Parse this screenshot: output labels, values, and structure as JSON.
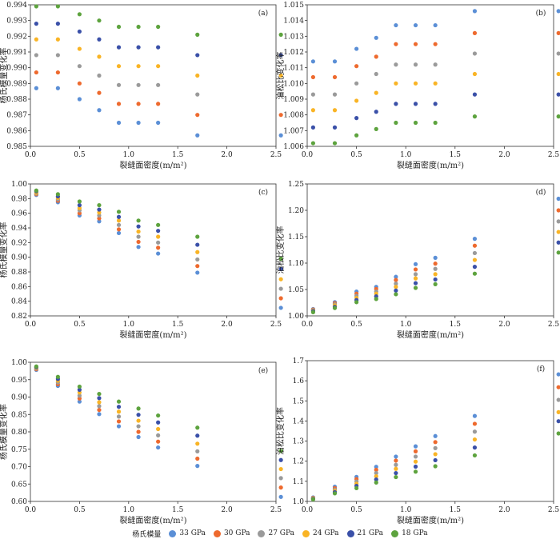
{
  "legend": {
    "title": "杨氏模量",
    "items": [
      {
        "label": "33 GPa",
        "color": "#5B8FD6"
      },
      {
        "label": "30 GPa",
        "color": "#EE6A2E"
      },
      {
        "label": "27 GPa",
        "color": "#9A9A9A"
      },
      {
        "label": "24 GPa",
        "color": "#F9B425"
      },
      {
        "label": "21 GPa",
        "color": "#3A50A8"
      },
      {
        "label": "18 GPa",
        "color": "#5DA33E"
      }
    ]
  },
  "chart_data": [
    {
      "panel": "(a)",
      "type": "scatter",
      "xlabel": "裂缝面密度(m/m²)",
      "ylabel": "杨氏模量变化率",
      "xlim": [
        0,
        2.5
      ],
      "ylim": [
        0.985,
        0.994
      ],
      "xticks": [
        "0.0",
        "0.5",
        "1.0",
        "1.5",
        "2.0",
        "2.5"
      ],
      "yticks": [
        "0.985",
        "0.986",
        "0.987",
        "0.988",
        "0.989",
        "0.990",
        "0.991",
        "0.992",
        "0.993",
        "0.994"
      ],
      "x": [
        0.06,
        0.28,
        0.5,
        0.7,
        0.9,
        1.1,
        1.3,
        1.7,
        2.55
      ],
      "series": [
        {
          "name": "33 GPa",
          "values": [
            0.9887,
            0.9887,
            0.988,
            0.9873,
            0.9865,
            0.9865,
            0.9865,
            0.9857,
            0.9857
          ]
        },
        {
          "name": "30 GPa",
          "values": [
            0.9897,
            0.9897,
            0.989,
            0.9884,
            0.9877,
            0.9877,
            0.9877,
            0.987,
            0.987
          ]
        },
        {
          "name": "27 GPa",
          "values": [
            0.9908,
            0.9908,
            0.9901,
            0.9895,
            0.9889,
            0.9889,
            0.9889,
            0.9883,
            0.9883
          ]
        },
        {
          "name": "24 GPa",
          "values": [
            0.9918,
            0.9918,
            0.9912,
            0.9907,
            0.9901,
            0.9901,
            0.9901,
            0.9895,
            0.9895
          ]
        },
        {
          "name": "21 GPa",
          "values": [
            0.9928,
            0.9928,
            0.9923,
            0.9918,
            0.9913,
            0.9913,
            0.9913,
            0.9908,
            0.9908
          ]
        },
        {
          "name": "18 GPa",
          "values": [
            0.9939,
            0.9939,
            0.9934,
            0.993,
            0.9926,
            0.9926,
            0.9926,
            0.9921,
            0.9921
          ]
        }
      ]
    },
    {
      "panel": "(b)",
      "type": "scatter",
      "xlabel": "裂缝面密度(m/m²)",
      "ylabel": "泊松比变化率",
      "xlim": [
        0,
        2.5
      ],
      "ylim": [
        1.006,
        1.015
      ],
      "xticks": [
        "0.0",
        "0.5",
        "1.0",
        "1.5",
        "2.0",
        "2.5"
      ],
      "yticks": [
        "1.006",
        "1.007",
        "1.008",
        "1.009",
        "1.010",
        "1.011",
        "1.012",
        "1.013",
        "1.014",
        "1.015"
      ],
      "x": [
        0.06,
        0.28,
        0.5,
        0.7,
        0.9,
        1.1,
        1.3,
        1.7,
        2.55
      ],
      "series": [
        {
          "name": "33 GPa",
          "values": [
            1.0114,
            1.0114,
            1.0122,
            1.0129,
            1.0137,
            1.0137,
            1.0137,
            1.0146,
            1.0146
          ]
        },
        {
          "name": "30 GPa",
          "values": [
            1.0104,
            1.0104,
            1.0111,
            1.0117,
            1.0125,
            1.0125,
            1.0125,
            1.0132,
            1.0132
          ]
        },
        {
          "name": "27 GPa",
          "values": [
            1.0093,
            1.0093,
            1.01,
            1.0106,
            1.0112,
            1.0112,
            1.0112,
            1.0119,
            1.0119
          ]
        },
        {
          "name": "24 GPa",
          "values": [
            1.0083,
            1.0083,
            1.0089,
            1.0094,
            1.01,
            1.01,
            1.01,
            1.0106,
            1.0106
          ]
        },
        {
          "name": "21 GPa",
          "values": [
            1.0072,
            1.0072,
            1.0078,
            1.0082,
            1.0087,
            1.0087,
            1.0087,
            1.0093,
            1.0093
          ]
        },
        {
          "name": "18 GPa",
          "values": [
            1.0062,
            1.0062,
            1.0067,
            1.0071,
            1.0075,
            1.0075,
            1.0075,
            1.0079,
            1.0079
          ]
        }
      ]
    },
    {
      "panel": "(c)",
      "type": "scatter",
      "xlabel": "裂缝面密度(m/m²)",
      "ylabel": "杨氏模量变化率",
      "xlim": [
        0,
        2.5
      ],
      "ylim": [
        0.82,
        1.0
      ],
      "xticks": [
        "0.0",
        "0.5",
        "1.0",
        "1.5",
        "2.0",
        "2.5"
      ],
      "yticks": [
        "0.82",
        "0.84",
        "0.86",
        "0.88",
        "0.90",
        "0.92",
        "0.94",
        "0.96",
        "0.98",
        "1.00"
      ],
      "x": [
        0.06,
        0.28,
        0.5,
        0.7,
        0.9,
        1.1,
        1.3,
        1.7,
        2.55
      ],
      "series": [
        {
          "name": "33 GPa",
          "values": [
            0.985,
            0.975,
            0.957,
            0.949,
            0.933,
            0.914,
            0.905,
            0.879,
            0.831
          ]
        },
        {
          "name": "30 GPa",
          "values": [
            0.986,
            0.977,
            0.96,
            0.953,
            0.938,
            0.921,
            0.913,
            0.888,
            0.844
          ]
        },
        {
          "name": "27 GPa",
          "values": [
            0.987,
            0.979,
            0.964,
            0.957,
            0.944,
            0.928,
            0.92,
            0.897,
            0.857
          ]
        },
        {
          "name": "24 GPa",
          "values": [
            0.988,
            0.981,
            0.967,
            0.961,
            0.95,
            0.935,
            0.928,
            0.907,
            0.87
          ]
        },
        {
          "name": "21 GPa",
          "values": [
            0.99,
            0.983,
            0.971,
            0.965,
            0.955,
            0.942,
            0.936,
            0.917,
            0.884
          ]
        },
        {
          "name": "18 GPa",
          "values": [
            0.991,
            0.986,
            0.976,
            0.971,
            0.962,
            0.95,
            0.944,
            0.928,
            0.898
          ]
        }
      ]
    },
    {
      "panel": "(d)",
      "type": "scatter",
      "xlabel": "裂缝面密度(m/m²)",
      "ylabel": "泊松比变化率",
      "xlim": [
        0,
        2.5
      ],
      "ylim": [
        1.0,
        1.25
      ],
      "xticks": [
        "0.0",
        "0.5",
        "1.0",
        "1.5",
        "2.0",
        "2.5"
      ],
      "yticks": [
        "1.00",
        "1.05",
        "1.10",
        "1.15",
        "1.20",
        "1.25"
      ],
      "x": [
        0.06,
        0.28,
        0.5,
        0.7,
        0.9,
        1.1,
        1.3,
        1.7,
        2.55
      ],
      "series": [
        {
          "name": "33 GPa",
          "values": [
            1.013,
            1.026,
            1.046,
            1.055,
            1.074,
            1.098,
            1.11,
            1.146,
            1.222
          ]
        },
        {
          "name": "30 GPa",
          "values": [
            1.012,
            1.024,
            1.042,
            1.051,
            1.068,
            1.088,
            1.099,
            1.133,
            1.2
          ]
        },
        {
          "name": "27 GPa",
          "values": [
            1.011,
            1.022,
            1.038,
            1.046,
            1.061,
            1.079,
            1.089,
            1.119,
            1.179
          ]
        },
        {
          "name": "24 GPa",
          "values": [
            1.01,
            1.02,
            1.034,
            1.042,
            1.055,
            1.071,
            1.079,
            1.106,
            1.159
          ]
        },
        {
          "name": "21 GPa",
          "values": [
            1.009,
            1.017,
            1.03,
            1.037,
            1.048,
            1.062,
            1.069,
            1.093,
            1.139
          ]
        },
        {
          "name": "18 GPa",
          "values": [
            1.007,
            1.015,
            1.026,
            1.032,
            1.041,
            1.053,
            1.06,
            1.08,
            1.12
          ]
        }
      ]
    },
    {
      "panel": "(e)",
      "type": "scatter",
      "xlabel": "裂缝面密度(m/m²)",
      "ylabel": "杨氏模量变化率",
      "xlim": [
        0,
        2.5
      ],
      "ylim": [
        0.6,
        1.0
      ],
      "xticks": [
        "0.0",
        "0.5",
        "1.0",
        "1.5",
        "2.0",
        "2.5"
      ],
      "yticks": [
        "0.60",
        "0.65",
        "0.70",
        "0.75",
        "0.80",
        "0.85",
        "0.90",
        "0.95",
        "1.00"
      ],
      "x": [
        0.06,
        0.28,
        0.5,
        0.7,
        0.9,
        1.1,
        1.3,
        1.7,
        2.55
      ],
      "series": [
        {
          "name": "33 GPa",
          "values": [
            0.978,
            0.932,
            0.887,
            0.851,
            0.816,
            0.785,
            0.755,
            0.702,
            0.613
          ]
        },
        {
          "name": "30 GPa",
          "values": [
            0.98,
            0.937,
            0.896,
            0.863,
            0.83,
            0.8,
            0.772,
            0.723,
            0.64
          ]
        },
        {
          "name": "27 GPa",
          "values": [
            0.982,
            0.942,
            0.904,
            0.874,
            0.844,
            0.816,
            0.79,
            0.744,
            0.667
          ]
        },
        {
          "name": "24 GPa",
          "values": [
            0.984,
            0.947,
            0.913,
            0.885,
            0.858,
            0.832,
            0.808,
            0.766,
            0.693
          ]
        },
        {
          "name": "21 GPa",
          "values": [
            0.986,
            0.952,
            0.921,
            0.897,
            0.872,
            0.849,
            0.827,
            0.789,
            0.719
          ]
        },
        {
          "name": "18 GPa",
          "values": [
            0.988,
            0.958,
            0.93,
            0.909,
            0.887,
            0.867,
            0.847,
            0.812,
            0.745
          ]
        }
      ]
    },
    {
      "panel": "(f)",
      "type": "scatter",
      "xlabel": "裂缝面密度(m/m²)",
      "ylabel": "泊松比变化率",
      "xlim": [
        0,
        2.5
      ],
      "ylim": [
        1.0,
        1.7
      ],
      "xticks": [
        "0.0",
        "0.5",
        "1.0",
        "1.5",
        "2.0",
        "2.5"
      ],
      "yticks": [
        "1.0",
        "1.1",
        "1.2",
        "1.3",
        "1.4",
        "1.5",
        "1.6",
        "1.7"
      ],
      "x": [
        0.06,
        0.28,
        0.5,
        0.7,
        0.9,
        1.1,
        1.3,
        1.7,
        2.55
      ],
      "series": [
        {
          "name": "33 GPa",
          "values": [
            1.02,
            1.073,
            1.122,
            1.172,
            1.223,
            1.274,
            1.325,
            1.425,
            1.632
          ]
        },
        {
          "name": "30 GPa",
          "values": [
            1.018,
            1.066,
            1.111,
            1.157,
            1.203,
            1.249,
            1.295,
            1.386,
            1.568
          ]
        },
        {
          "name": "27 GPa",
          "values": [
            1.016,
            1.059,
            1.099,
            1.141,
            1.182,
            1.223,
            1.265,
            1.347,
            1.505
          ]
        },
        {
          "name": "24 GPa",
          "values": [
            1.014,
            1.052,
            1.088,
            1.125,
            1.162,
            1.198,
            1.235,
            1.308,
            1.444
          ]
        },
        {
          "name": "21 GPa",
          "values": [
            1.012,
            1.046,
            1.077,
            1.109,
            1.141,
            1.173,
            1.205,
            1.268,
            1.399
          ]
        },
        {
          "name": "18 GPa",
          "values": [
            1.01,
            1.04,
            1.066,
            1.094,
            1.121,
            1.148,
            1.175,
            1.229,
            1.338
          ]
        }
      ]
    }
  ]
}
